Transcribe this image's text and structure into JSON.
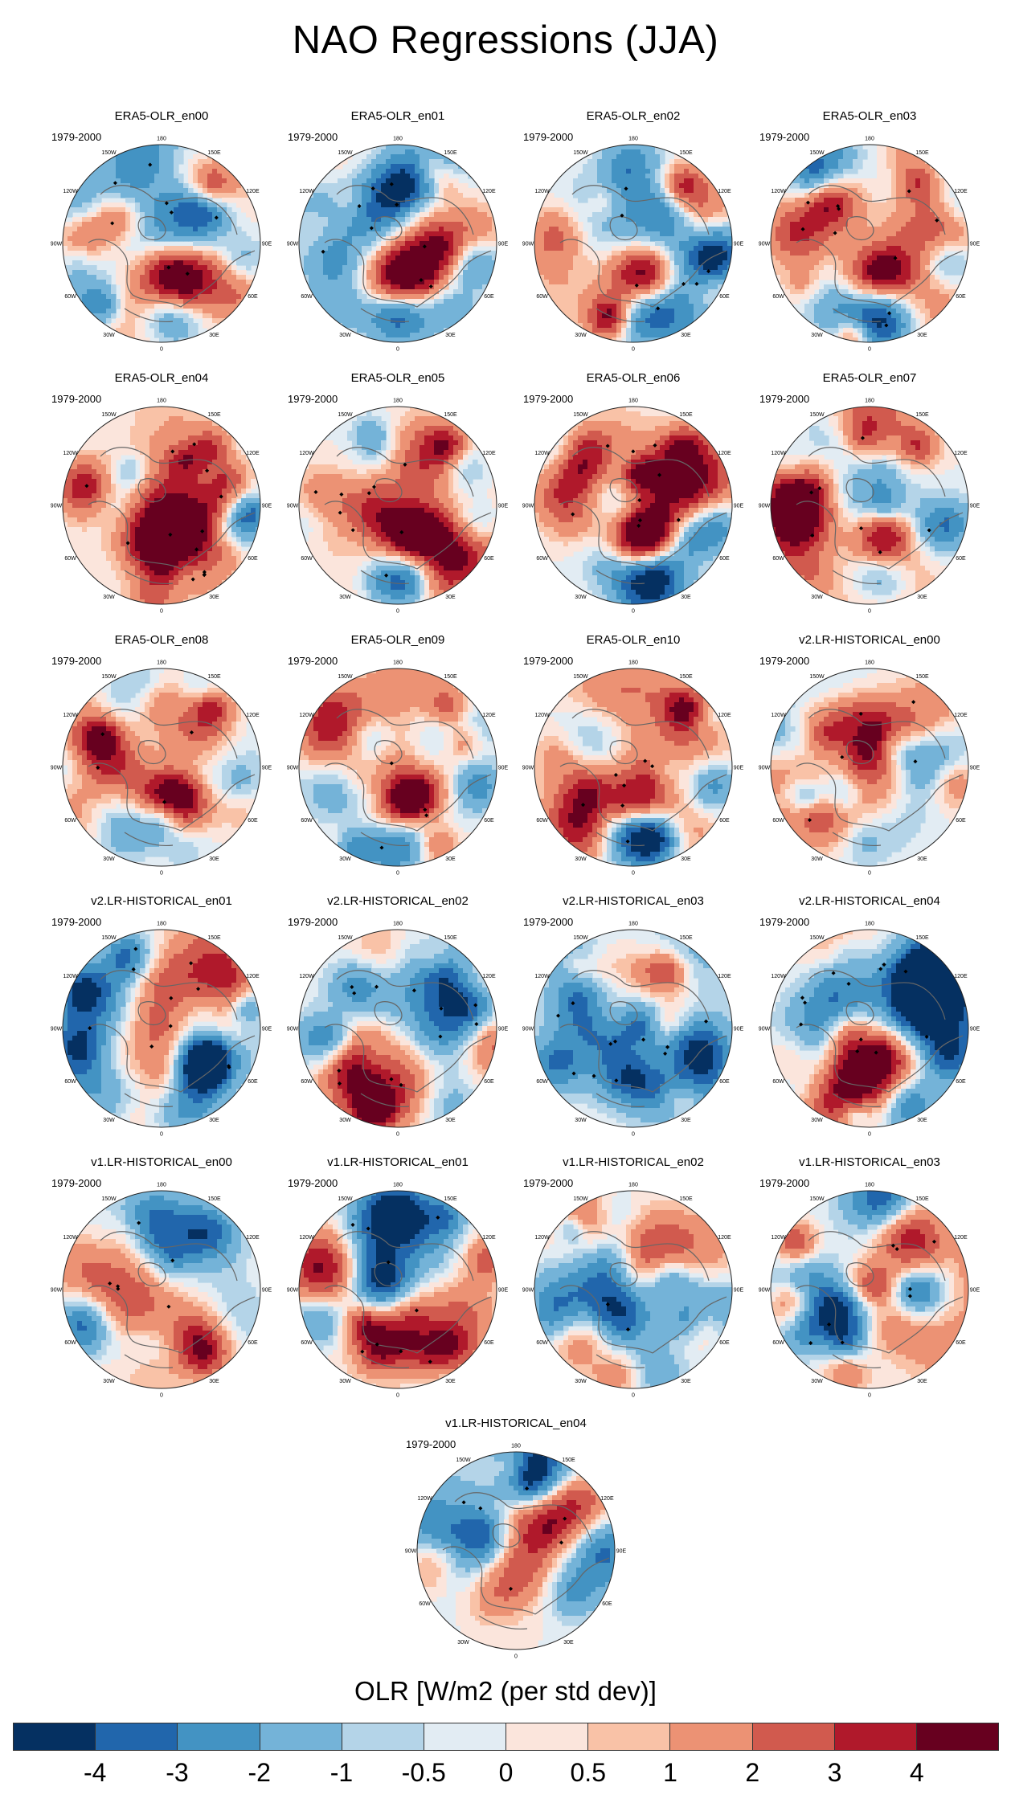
{
  "title": "NAO Regressions (JJA)",
  "panels": [
    {
      "name": "ERA5-OLR_en00",
      "period": "1979-2000",
      "style": "era5",
      "seed": 11
    },
    {
      "name": "ERA5-OLR_en01",
      "period": "1979-2000",
      "style": "era5",
      "seed": 12
    },
    {
      "name": "ERA5-OLR_en02",
      "period": "1979-2000",
      "style": "era5",
      "seed": 13
    },
    {
      "name": "ERA5-OLR_en03",
      "period": "1979-2000",
      "style": "era5",
      "seed": 14
    },
    {
      "name": "ERA5-OLR_en04",
      "period": "1979-2000",
      "style": "era5",
      "seed": 15
    },
    {
      "name": "ERA5-OLR_en05",
      "period": "1979-2000",
      "style": "era5",
      "seed": 16
    },
    {
      "name": "ERA5-OLR_en06",
      "period": "1979-2000",
      "style": "era5",
      "seed": 17
    },
    {
      "name": "ERA5-OLR_en07",
      "period": "1979-2000",
      "style": "era5",
      "seed": 18
    },
    {
      "name": "ERA5-OLR_en08",
      "period": "1979-2000",
      "style": "era5",
      "seed": 19
    },
    {
      "name": "ERA5-OLR_en09",
      "period": "1979-2000",
      "style": "era5",
      "seed": 20
    },
    {
      "name": "ERA5-OLR_en10",
      "period": "1979-2000",
      "style": "era5",
      "seed": 21
    },
    {
      "name": "v2.LR-HISTORICAL_en00",
      "period": "1979-2000",
      "style": "model",
      "seed": 31
    },
    {
      "name": "v2.LR-HISTORICAL_en01",
      "period": "1979-2000",
      "style": "model",
      "seed": 32
    },
    {
      "name": "v2.LR-HISTORICAL_en02",
      "period": "1979-2000",
      "style": "model",
      "seed": 33
    },
    {
      "name": "v2.LR-HISTORICAL_en03",
      "period": "1979-2000",
      "style": "model",
      "seed": 34
    },
    {
      "name": "v2.LR-HISTORICAL_en04",
      "period": "1979-2000",
      "style": "model",
      "seed": 35
    },
    {
      "name": "v1.LR-HISTORICAL_en00",
      "period": "1979-2000",
      "style": "model",
      "seed": 41
    },
    {
      "name": "v1.LR-HISTORICAL_en01",
      "period": "1979-2000",
      "style": "model",
      "seed": 42
    },
    {
      "name": "v1.LR-HISTORICAL_en02",
      "period": "1979-2000",
      "style": "model",
      "seed": 43
    },
    {
      "name": "v1.LR-HISTORICAL_en03",
      "period": "1979-2000",
      "style": "model",
      "seed": 44
    },
    {
      "name": "v1.LR-HISTORICAL_en04",
      "period": "1979-2000",
      "style": "model",
      "seed": 45
    }
  ],
  "longitude_labels": [
    "180",
    "150E",
    "120E",
    "90E",
    "60E",
    "30E",
    "0",
    "30W",
    "60W",
    "90W",
    "120W",
    "150W"
  ],
  "colorbar": {
    "title": "OLR [W/m2 (per std dev)]",
    "colors": [
      "#053061",
      "#2166ac",
      "#4393c3",
      "#74b3d8",
      "#b4d4e8",
      "#e2ecf3",
      "#fbe5dc",
      "#f9c2a7",
      "#ec9274",
      "#d15a4e",
      "#b0192b",
      "#67001f"
    ],
    "tick_labels": [
      "-4",
      "-3",
      "-2",
      "-1",
      "-0.5",
      "0",
      "0.5",
      "1",
      "2",
      "3",
      "4"
    ]
  }
}
